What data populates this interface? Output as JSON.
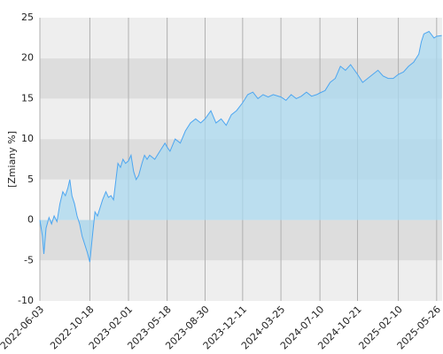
{
  "chart_data": {
    "type": "area",
    "y_label": "[Zmiany %]",
    "line_color": "#4da6f0",
    "fill_color": "#a9d8ef",
    "grid": true,
    "band_colors": [
      "#eeeeee",
      "#dddddd"
    ],
    "ylim": [
      -10,
      25
    ],
    "yticks": [
      -10,
      -5,
      0,
      5,
      10,
      15,
      20,
      25
    ],
    "xlim": [
      "2022-06-03",
      "2025-06-10"
    ],
    "xticks": [
      "2022-06-03",
      "2022-10-18",
      "2023-02-01",
      "2023-05-18",
      "2023-08-30",
      "2023-12-11",
      "2024-03-25",
      "2024-07-10",
      "2024-10-21",
      "2025-02-10",
      "2025-05-26"
    ],
    "x": [
      "2022-06-03",
      "2022-06-10",
      "2022-06-14",
      "2022-06-20",
      "2022-06-28",
      "2022-07-05",
      "2022-07-12",
      "2022-07-20",
      "2022-07-28",
      "2022-08-05",
      "2022-08-12",
      "2022-08-19",
      "2022-08-24",
      "2022-08-30",
      "2022-09-06",
      "2022-09-13",
      "2022-09-20",
      "2022-09-27",
      "2022-10-04",
      "2022-10-11",
      "2022-10-18",
      "2022-10-25",
      "2022-11-01",
      "2022-11-08",
      "2022-11-15",
      "2022-11-22",
      "2022-12-01",
      "2022-12-08",
      "2022-12-15",
      "2022-12-22",
      "2023-01-03",
      "2023-01-10",
      "2023-01-17",
      "2023-01-24",
      "2023-02-01",
      "2023-02-08",
      "2023-02-15",
      "2023-02-22",
      "2023-03-01",
      "2023-03-10",
      "2023-03-17",
      "2023-03-24",
      "2023-03-31",
      "2023-04-14",
      "2023-04-28",
      "2023-05-12",
      "2023-05-18",
      "2023-05-26",
      "2023-06-09",
      "2023-06-23",
      "2023-07-07",
      "2023-07-21",
      "2023-08-04",
      "2023-08-18",
      "2023-08-30",
      "2023-09-15",
      "2023-09-29",
      "2023-10-13",
      "2023-10-27",
      "2023-11-10",
      "2023-11-24",
      "2023-12-11",
      "2023-12-25",
      "2024-01-08",
      "2024-01-22",
      "2024-02-05",
      "2024-02-19",
      "2024-03-04",
      "2024-03-25",
      "2024-04-08",
      "2024-04-22",
      "2024-05-06",
      "2024-05-20",
      "2024-06-03",
      "2024-06-17",
      "2024-07-01",
      "2024-07-10",
      "2024-07-24",
      "2024-08-07",
      "2024-08-21",
      "2024-09-04",
      "2024-09-18",
      "2024-10-02",
      "2024-10-21",
      "2024-11-04",
      "2024-11-18",
      "2024-12-02",
      "2024-12-16",
      "2024-12-30",
      "2025-01-13",
      "2025-01-27",
      "2025-02-10",
      "2025-02-24",
      "2025-03-10",
      "2025-03-24",
      "2025-04-07",
      "2025-04-14",
      "2025-04-21",
      "2025-05-05",
      "2025-05-19",
      "2025-05-26",
      "2025-06-09"
    ],
    "values": [
      0,
      -2,
      -4.2,
      -1,
      0.3,
      -0.5,
      0.5,
      -0.2,
      2,
      3.5,
      3,
      4,
      5,
      3,
      2,
      0.5,
      -0.5,
      -2,
      -3,
      -4,
      -5.2,
      -2,
      1,
      0.5,
      1.5,
      2.5,
      3.5,
      2.8,
      3,
      2.5,
      7,
      6.5,
      7.5,
      7,
      7.3,
      8,
      6,
      5,
      5.5,
      7,
      8,
      7.5,
      8,
      7.5,
      8.5,
      9.5,
      9,
      8.5,
      10,
      9.5,
      11,
      12,
      12.5,
      12,
      12.5,
      13.5,
      12,
      12.5,
      11.7,
      13,
      13.5,
      14.5,
      15.5,
      15.8,
      15,
      15.5,
      15.2,
      15.5,
      15.2,
      14.8,
      15.5,
      15,
      15.3,
      15.8,
      15.3,
      15.5,
      15.7,
      16,
      17,
      17.5,
      19,
      18.5,
      19.2,
      18,
      17,
      17.5,
      18,
      18.5,
      17.8,
      17.5,
      17.5,
      18,
      18.3,
      19,
      19.5,
      20.5,
      22,
      23,
      23.3,
      22.5,
      22.7,
      22.8
    ]
  }
}
